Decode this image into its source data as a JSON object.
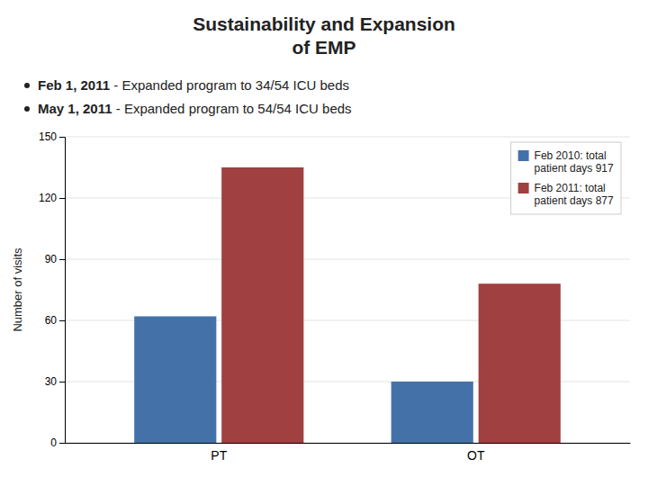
{
  "chart_data": {
    "type": "bar",
    "title": "Sustainability and Expansion\nof EMP",
    "annotations": [
      [
        "Feb 1, 2011",
        " - Expanded program to 34/54 ICU beds"
      ],
      [
        "May 1, 2011",
        " - Expanded program to 54/54 ICU beds"
      ]
    ],
    "categories": [
      "PT",
      "OT"
    ],
    "series": [
      {
        "name": "Feb 2010: total\npatient days 917",
        "color": "#4472a8",
        "values": [
          62,
          30
        ]
      },
      {
        "name": "Feb 2011: total\npatient days 877",
        "color": "#a04040",
        "values": [
          135,
          78
        ]
      }
    ],
    "ylabel": "Number of visits",
    "ylim": [
      0,
      150
    ],
    "yticks": [
      0,
      30,
      60,
      90,
      120,
      150
    ],
    "grid": true,
    "legend": "upper right"
  }
}
